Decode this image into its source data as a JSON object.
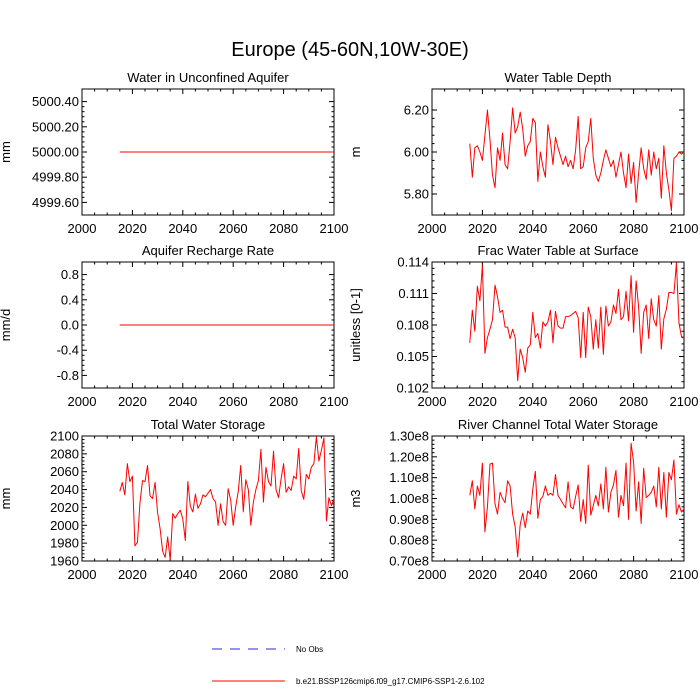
{
  "figure": {
    "title": "Europe (45-60N,10W-30E)"
  },
  "legend": {
    "obs_label": "No Obs",
    "obs_color": "#2b2bd6",
    "model_label": "b.e21.BSSP126cmip6.f09_g17.CMIP6-SSP1-2.6.102",
    "model_color": "#ff0000"
  },
  "chart_data": [
    {
      "id": "aquifer-water",
      "type": "line",
      "title": "Water in Unconfined Aquifer",
      "xlabel": "",
      "ylabel": "mm",
      "xlim": [
        2000,
        2100
      ],
      "ylim": [
        4999.5,
        5000.5
      ],
      "xticks": [
        2000,
        2020,
        2040,
        2060,
        2080,
        2100
      ],
      "xtick_labels": [
        "2000",
        "2020",
        "2040",
        "2060",
        "2080",
        "2100"
      ],
      "yticks": [
        4999.6,
        4999.8,
        5000.0,
        5000.2,
        5000.4
      ],
      "ytick_labels": [
        "4999.60",
        "4999.80",
        "5000.00",
        "5000.20",
        "5000.40"
      ],
      "color": "#ff0000",
      "x_start": 2015,
      "values": [
        5000.0,
        5000.0,
        5000.0,
        5000.0,
        5000.0,
        5000.0,
        5000.0,
        5000.0,
        5000.0,
        5000.0,
        5000.0,
        5000.0,
        5000.0,
        5000.0,
        5000.0,
        5000.0,
        5000.0,
        5000.0,
        5000.0,
        5000.0,
        5000.0,
        5000.0,
        5000.0,
        5000.0,
        5000.0,
        5000.0,
        5000.0,
        5000.0,
        5000.0,
        5000.0,
        5000.0,
        5000.0,
        5000.0,
        5000.0,
        5000.0,
        5000.0,
        5000.0,
        5000.0,
        5000.0,
        5000.0,
        5000.0,
        5000.0,
        5000.0,
        5000.0,
        5000.0,
        5000.0,
        5000.0,
        5000.0,
        5000.0,
        5000.0,
        5000.0,
        5000.0,
        5000.0,
        5000.0,
        5000.0,
        5000.0,
        5000.0,
        5000.0,
        5000.0,
        5000.0,
        5000.0,
        5000.0,
        5000.0,
        5000.0,
        5000.0,
        5000.0,
        5000.0,
        5000.0,
        5000.0,
        5000.0,
        5000.0,
        5000.0,
        5000.0,
        5000.0,
        5000.0,
        5000.0,
        5000.0,
        5000.0,
        5000.0,
        5000.0,
        5000.0,
        5000.0,
        5000.0,
        5000.0,
        5000.0,
        5000.0
      ]
    },
    {
      "id": "water-table-depth",
      "type": "line",
      "title": "Water Table Depth",
      "xlabel": "",
      "ylabel": "m",
      "xlim": [
        2000,
        2100
      ],
      "ylim": [
        5.7,
        6.3
      ],
      "xticks": [
        2000,
        2020,
        2040,
        2060,
        2080,
        2100
      ],
      "xtick_labels": [
        "2000",
        "2020",
        "2040",
        "2060",
        "2080",
        "2100"
      ],
      "yticks": [
        5.8,
        6.0,
        6.2
      ],
      "ytick_labels": [
        "5.80",
        "6.00",
        "6.20"
      ],
      "color": "#ff0000",
      "x_start": 2015,
      "values": [
        6.04,
        5.88,
        6.02,
        6.03,
        6.0,
        5.96,
        6.08,
        6.2,
        6.06,
        5.89,
        5.83,
        6.02,
        5.96,
        6.09,
        5.94,
        5.92,
        6.05,
        6.21,
        6.09,
        6.12,
        6.19,
        6.11,
        5.98,
        6.03,
        6.05,
        6.16,
        6.14,
        5.86,
        6.0,
        5.93,
        5.88,
        6.13,
        6.05,
        5.94,
        6.07,
        6.02,
        5.98,
        5.94,
        5.98,
        5.93,
        5.96,
        5.92,
        6.01,
        6.17,
        5.92,
        5.93,
        6.02,
        6.05,
        6.16,
        5.97,
        5.89,
        5.86,
        5.9,
        5.96,
        6.01,
        5.97,
        5.93,
        5.96,
        5.88,
        5.94,
        6.0,
        5.9,
        5.83,
        5.99,
        5.85,
        5.95,
        5.76,
        5.9,
        6.02,
        5.92,
        5.87,
        6.01,
        5.89,
        6.0,
        5.92,
        5.97,
        5.78,
        6.03,
        5.9,
        5.82,
        5.72,
        5.97,
        5.98,
        6.0,
        5.99,
        6.0
      ]
    },
    {
      "id": "aquifer-recharge",
      "type": "line",
      "title": "Aquifer Recharge Rate",
      "xlabel": "",
      "ylabel": "mm/d",
      "xlim": [
        2000,
        2100
      ],
      "ylim": [
        -1.0,
        1.0
      ],
      "xticks": [
        2000,
        2020,
        2040,
        2060,
        2080,
        2100
      ],
      "xtick_labels": [
        "2000",
        "2020",
        "2040",
        "2060",
        "2080",
        "2100"
      ],
      "yticks": [
        -0.8,
        -0.4,
        0.0,
        0.4,
        0.8
      ],
      "ytick_labels": [
        "-0.8",
        "-0.4",
        "0.0",
        "0.4",
        "0.8"
      ],
      "color": "#ff0000",
      "x_start": 2015,
      "values": [
        0.0,
        0.0,
        0.0,
        0.0,
        0.0,
        0.0,
        0.0,
        0.0,
        0.0,
        0.0,
        0.0,
        0.0,
        0.0,
        0.0,
        0.0,
        0.0,
        0.0,
        0.0,
        0.0,
        0.0,
        0.0,
        0.0,
        0.0,
        0.0,
        0.0,
        0.0,
        0.0,
        0.0,
        0.0,
        0.0,
        0.0,
        0.0,
        0.0,
        0.0,
        0.0,
        0.0,
        0.0,
        0.0,
        0.0,
        0.0,
        0.0,
        0.0,
        0.0,
        0.0,
        0.0,
        0.0,
        0.0,
        0.0,
        0.0,
        0.0,
        0.0,
        0.0,
        0.0,
        0.0,
        0.0,
        0.0,
        0.0,
        0.0,
        0.0,
        0.0,
        0.0,
        0.0,
        0.0,
        0.0,
        0.0,
        0.0,
        0.0,
        0.0,
        0.0,
        0.0,
        0.0,
        0.0,
        0.0,
        0.0,
        0.0,
        0.0,
        0.0,
        0.0,
        0.0,
        0.0,
        0.0,
        0.0,
        0.0,
        0.0,
        0.0,
        0.0
      ]
    },
    {
      "id": "frac-water-table",
      "type": "line",
      "title": "Frac Water Table at Surface",
      "xlabel": "",
      "ylabel": "unitless [0-1]",
      "xlim": [
        2000,
        2100
      ],
      "ylim": [
        0.102,
        0.114
      ],
      "xticks": [
        2000,
        2020,
        2040,
        2060,
        2080,
        2100
      ],
      "xtick_labels": [
        "2000",
        "2020",
        "2040",
        "2060",
        "2080",
        "2100"
      ],
      "yticks": [
        0.102,
        0.105,
        0.108,
        0.111,
        0.114
      ],
      "ytick_labels": [
        "0.102",
        "0.105",
        "0.108",
        "0.111",
        "0.114"
      ],
      "color": "#ff0000",
      "x_start": 2015,
      "values": [
        0.1063,
        0.1094,
        0.1074,
        0.1117,
        0.1103,
        0.1137,
        0.1053,
        0.1068,
        0.1076,
        0.1085,
        0.1118,
        0.1107,
        0.1092,
        0.1094,
        0.1078,
        0.1078,
        0.1067,
        0.1076,
        0.1068,
        0.1027,
        0.1057,
        0.1049,
        0.1035,
        0.1058,
        0.1061,
        0.1092,
        0.1068,
        0.1072,
        0.1058,
        0.1083,
        0.1079,
        0.1083,
        0.1094,
        0.1063,
        0.1093,
        0.1079,
        0.1077,
        0.1077,
        0.1088,
        0.1088,
        0.1089,
        0.1091,
        0.1093,
        0.1087,
        0.1049,
        0.1092,
        0.1049,
        0.1097,
        0.1088,
        0.1057,
        0.1085,
        0.1058,
        0.1097,
        0.1052,
        0.1098,
        0.1079,
        0.1083,
        0.1099,
        0.1091,
        0.1114,
        0.1085,
        0.1088,
        0.1112,
        0.1084,
        0.1127,
        0.1073,
        0.1122,
        0.1097,
        0.1053,
        0.1092,
        0.1099,
        0.1067,
        0.1105,
        0.1085,
        0.1079,
        0.1108,
        0.1057,
        0.1086,
        0.1095,
        0.1111,
        0.1111,
        0.111,
        0.1139,
        0.1082,
        0.1069,
        0.1068
      ]
    },
    {
      "id": "total-water-storage",
      "type": "line",
      "title": "Total Water Storage",
      "xlabel": "",
      "ylabel": "mm",
      "xlim": [
        2000,
        2100
      ],
      "ylim": [
        1960,
        2100
      ],
      "xticks": [
        2000,
        2020,
        2040,
        2060,
        2080,
        2100
      ],
      "xtick_labels": [
        "2000",
        "2020",
        "2040",
        "2060",
        "2080",
        "2100"
      ],
      "yticks": [
        1960,
        1980,
        2000,
        2020,
        2040,
        2060,
        2080,
        2100
      ],
      "ytick_labels": [
        "1960",
        "1980",
        "2000",
        "2020",
        "2040",
        "2060",
        "2080",
        "2100"
      ],
      "color": "#ff0000",
      "x_start": 2015,
      "values": [
        2038,
        2048,
        2034,
        2069,
        2049,
        2055,
        1977,
        1981,
        2025,
        2050,
        2049,
        2067,
        2033,
        2030,
        2048,
        2014,
        1996,
        1971,
        1964,
        1987,
        1961,
        2013,
        2008,
        2013,
        2017,
        2007,
        1983,
        2049,
        2021,
        2015,
        2035,
        2019,
        2024,
        2034,
        2032,
        2036,
        2040,
        2030,
        2026,
        2000,
        2024,
        2004,
        2000,
        2041,
        2028,
        2000,
        2021,
        2038,
        2067,
        2015,
        2051,
        2040,
        2000,
        2026,
        2040,
        2050,
        2085,
        2026,
        2065,
        2049,
        2044,
        2083,
        2040,
        2031,
        2052,
        2069,
        2037,
        2043,
        2039,
        2055,
        2052,
        2086,
        2039,
        2029,
        2057,
        2052,
        2065,
        2069,
        2099,
        2072,
        2084,
        2098,
        2005,
        2031,
        2022,
        2030
      ]
    },
    {
      "id": "river-channel-storage",
      "type": "line",
      "title": "River Channel Total Water Storage",
      "xlabel": "",
      "ylabel": "m3",
      "xlim": [
        2000,
        2100
      ],
      "ylim": [
        70000000.0,
        130000000.0
      ],
      "xticks": [
        2000,
        2020,
        2040,
        2060,
        2080,
        2100
      ],
      "xtick_labels": [
        "2000",
        "2020",
        "2040",
        "2060",
        "2080",
        "2100"
      ],
      "yticks": [
        70000000.0,
        80000000.0,
        90000000.0,
        100000000.0,
        110000000.0,
        120000000.0,
        130000000.0
      ],
      "ytick_labels": [
        "0.70e8",
        "0.80e8",
        "0.90e8",
        "1.00e8",
        "1.10e8",
        "1.20e8",
        "1.30e8"
      ],
      "color": "#ff0000",
      "x_start": 2015,
      "values": [
        101500000.0,
        108500000.0,
        95000000.0,
        106000000.0,
        101500000.0,
        117000000.0,
        84000000.0,
        96000000.0,
        116500000.0,
        117000000.0,
        97500000.0,
        92500000.0,
        103000000.0,
        100000000.0,
        98000000.0,
        108500000.0,
        106000000.0,
        92500000.0,
        86500000.0,
        72000000.0,
        87500000.0,
        93000000.0,
        86000000.0,
        94000000.0,
        92500000.0,
        104500000.0,
        113000000.0,
        90500000.0,
        99500000.0,
        101000000.0,
        106000000.0,
        101500000.0,
        102500000.0,
        101500000.0,
        111500000.0,
        101500000.0,
        99500000.0,
        97500000.0,
        95500000.0,
        108000000.0,
        96000000.0,
        95000000.0,
        101000000.0,
        106500000.0,
        89000000.0,
        99500000.0,
        88000000.0,
        116000000.0,
        92000000.0,
        96500000.0,
        101500000.0,
        96500000.0,
        107000000.0,
        95000000.0,
        115000000.0,
        93500000.0,
        103000000.0,
        106500000.0,
        113500000.0,
        91000000.0,
        101500000.0,
        96500000.0,
        117000000.0,
        90000000.0,
        126500000.0,
        117500000.0,
        94000000.0,
        108000000.0,
        88000000.0,
        114500000.0,
        100500000.0,
        101500000.0,
        103000000.0,
        106000000.0,
        96000000.0,
        115000000.0,
        95000000.0,
        112500000.0,
        91000000.0,
        112500000.0,
        109000000.0,
        118500000.0,
        92500000.0,
        97000000.0,
        93500000.0,
        95000000.0
      ]
    }
  ]
}
